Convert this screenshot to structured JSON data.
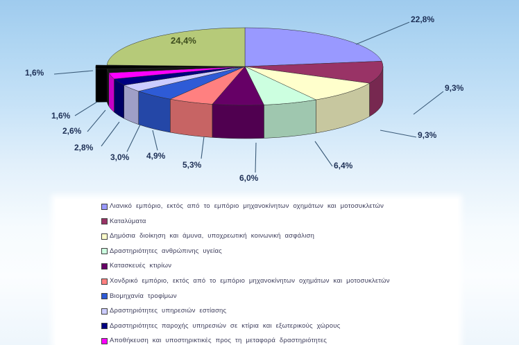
{
  "chart_data": {
    "type": "pie",
    "style": "3d-exploded-pie",
    "unit": "%",
    "decimal_style": "comma",
    "legend_position": "bottom",
    "legend_visible_items": 10,
    "slices": [
      {
        "label": "Λιανικό εμπόριο, εκτός από το εμπόριο μηχανοκίνητων  οχημάτων  και  μοτοσυκλετών",
        "value": 22.8,
        "display": "22,8%",
        "color": "#9999FF"
      },
      {
        "label": "Καταλύματα",
        "value": 9.3,
        "display": "9,3%",
        "color": "#993366"
      },
      {
        "label": "Δημόσια διοίκηση  και  άμυνα, υποχρεωτική  κοινωνική  ασφάλιση",
        "value": 9.3,
        "display": "9,3%",
        "color": "#FFFFCC"
      },
      {
        "label": "Δραστηριότητες  ανθρώπινης  υγείας",
        "value": 6.4,
        "display": "6,4%",
        "color": "#CCFFE0"
      },
      {
        "label": "Κατασκευές  κτιρίων",
        "value": 6.0,
        "display": "6,0%",
        "color": "#660066"
      },
      {
        "label": "Χονδρικό εμπόριο,  εκτός  από  το  εμπόριο μηχανοκίνητων  οχημάτων  και  μοτοσυκλετών",
        "value": 5.3,
        "display": "5,3%",
        "color": "#FF8080"
      },
      {
        "label": "Βιομηχανία  τροφίμων",
        "value": 4.9,
        "display": "4,9%",
        "color": "#2E5BD6"
      },
      {
        "label": "Δραστηριότητες  υπηρεσιών  εστίασης",
        "value": 3.0,
        "display": "3,0%",
        "color": "#CCCCFF"
      },
      {
        "label": "Δραστηριότητες  παροχής  υπηρεσιών  σε  κτίρια  και  εξωτερικούς  χώρους",
        "value": 2.8,
        "display": "2,8%",
        "color": "#000080"
      },
      {
        "label": "Αποθήκευση  και  υποστηρικτικές  προς  τη  μεταφορά  δραστηριότητες",
        "value": 2.6,
        "display": "2,6%",
        "color": "#FF00FF"
      },
      {
        "label": "",
        "value": 1.6,
        "display": "1,6%",
        "color": "#141414"
      },
      {
        "label": "",
        "value": 1.6,
        "display": "1,6%",
        "color": "#000000",
        "exploded": true
      },
      {
        "label": "",
        "value": 24.4,
        "display": "24,4%",
        "color": "#B6CA79"
      }
    ],
    "colors": {
      "label_text": "#1D2F55",
      "inside_label_text": "#3E4D1E",
      "leader_line": "#3A5A78",
      "legend_text": "#3C3C5A",
      "page_background_top": "#9FCBEE",
      "panel_background": "#FFFFFF"
    }
  }
}
